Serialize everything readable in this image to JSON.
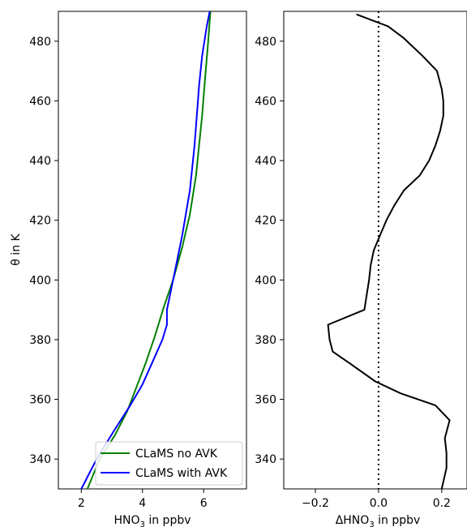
{
  "chart_data": [
    {
      "type": "line",
      "xlabel": "HNO",
      "xlabel_sub": "3",
      "xlabel_suffix": " in ppbv",
      "ylabel": "θ in K",
      "xlim": [
        1.25,
        7.4
      ],
      "ylim": [
        330,
        490
      ],
      "xticks": [
        2,
        4,
        6
      ],
      "yticks": [
        340,
        360,
        380,
        400,
        420,
        440,
        460,
        480
      ],
      "grid": false,
      "legend_position": "lower-right",
      "series": [
        {
          "name": "CLaMS no AVK",
          "color": "#008000",
          "x": [
            2.2,
            2.6,
            3.1,
            3.5,
            3.8,
            4.1,
            4.4,
            4.7,
            5.0,
            5.3,
            5.55,
            5.75,
            5.85,
            5.95,
            6.05,
            6.15,
            6.22
          ],
          "y": [
            330,
            340,
            348,
            356,
            364,
            372,
            381,
            391,
            400,
            411,
            422,
            435,
            445,
            455,
            468,
            480,
            490
          ]
        },
        {
          "name": "CLaMS with AVK",
          "color": "#0000ff",
          "x": [
            2.0,
            2.5,
            3.1,
            3.6,
            4.0,
            4.35,
            4.65,
            4.8,
            4.8,
            5.0,
            5.3,
            5.55,
            5.7,
            5.8,
            5.85,
            5.95,
            6.1,
            6.2
          ],
          "y": [
            330,
            340,
            350,
            358,
            365,
            373,
            380,
            385,
            390,
            400,
            415,
            430,
            445,
            458,
            465,
            475,
            485,
            490
          ]
        }
      ]
    },
    {
      "type": "line",
      "xlabel": "ΔHNO",
      "xlabel_sub": "3",
      "xlabel_suffix": " in ppbv",
      "ylabel": "",
      "xlim": [
        -0.3,
        0.28
      ],
      "ylim": [
        330,
        490
      ],
      "xticks": [
        -0.2,
        0.0,
        0.2
      ],
      "xticklabels": [
        "−0.2",
        "0.0",
        "0.2"
      ],
      "yticks": [
        340,
        360,
        380,
        400,
        420,
        440,
        460,
        480
      ],
      "grid": false,
      "reference_line": {
        "x": 0.0,
        "style": "dotted"
      },
      "series": [
        {
          "color": "#000000",
          "x": [
            0.2,
            0.215,
            0.215,
            0.21,
            0.225,
            0.18,
            0.07,
            -0.01,
            -0.09,
            -0.145,
            -0.155,
            -0.16,
            -0.045,
            -0.03,
            -0.025,
            -0.015,
            0.005,
            0.025,
            0.05,
            0.08,
            0.13,
            0.16,
            0.18,
            0.195,
            0.205,
            0.205,
            0.2,
            0.185,
            0.14,
            0.08,
            0.03,
            -0.07
          ],
          "y": [
            330,
            337,
            342,
            347,
            353,
            358,
            362,
            366,
            372,
            376,
            380,
            385,
            390,
            400,
            405,
            410,
            415,
            420,
            425,
            430,
            435,
            440,
            445,
            450,
            455,
            460,
            464,
            470,
            475,
            481,
            485,
            489
          ]
        }
      ]
    }
  ]
}
